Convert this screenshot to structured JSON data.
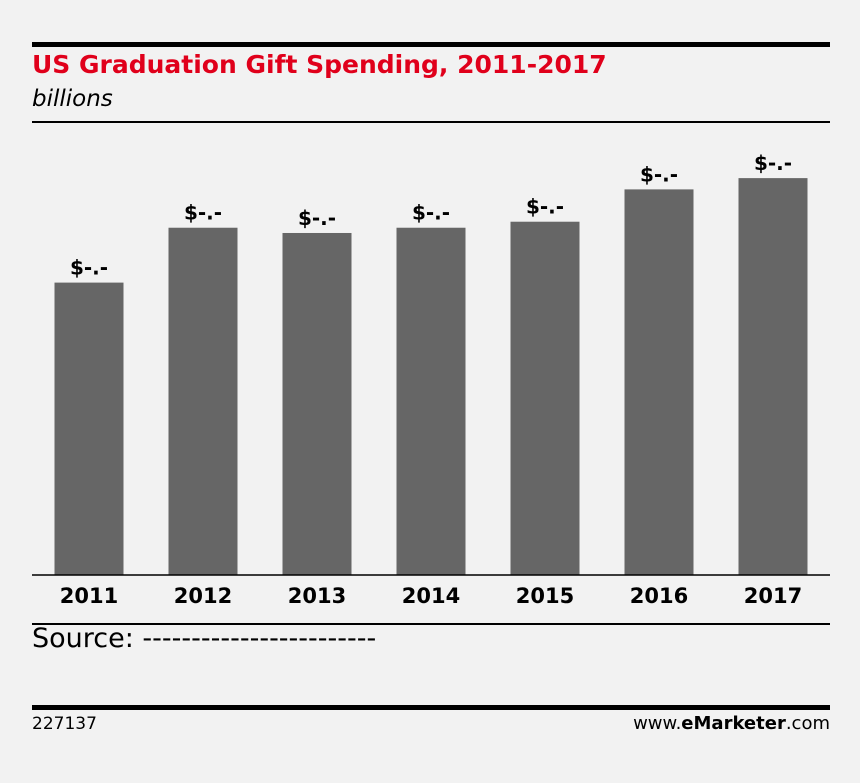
{
  "chart_data": {
    "type": "bar",
    "title": "US Graduation Gift Spending, 2011-2017",
    "subtitle": "billions",
    "categories": [
      "2011",
      "2012",
      "2013",
      "2014",
      "2015",
      "2016",
      "2017"
    ],
    "values": [
      3.89,
      4.62,
      4.55,
      4.62,
      4.7,
      5.13,
      5.28
    ],
    "data_labels": [
      "$-.-",
      "$-.-",
      "$-.-",
      "$-.-",
      "$-.-",
      "$-.-",
      "$-.-"
    ],
    "ylim": [
      0,
      6
    ],
    "grid": false,
    "bar_color": "#666666"
  },
  "source": "Source: ------------------------",
  "footer": {
    "chart_id": "227137",
    "brand_prefix": "www.",
    "brand_bold": "eMarketer",
    "brand_suffix": ".com"
  },
  "colors": {
    "title": "#e0001b",
    "background": "#f2f2f2"
  }
}
